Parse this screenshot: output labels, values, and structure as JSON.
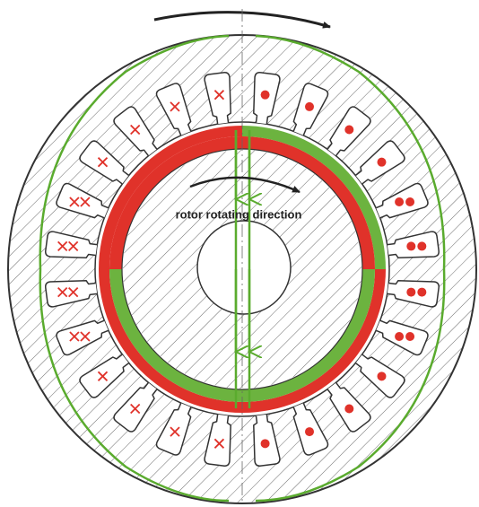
{
  "labels": {
    "rotor_direction": "rotor rotating direction"
  }
}
